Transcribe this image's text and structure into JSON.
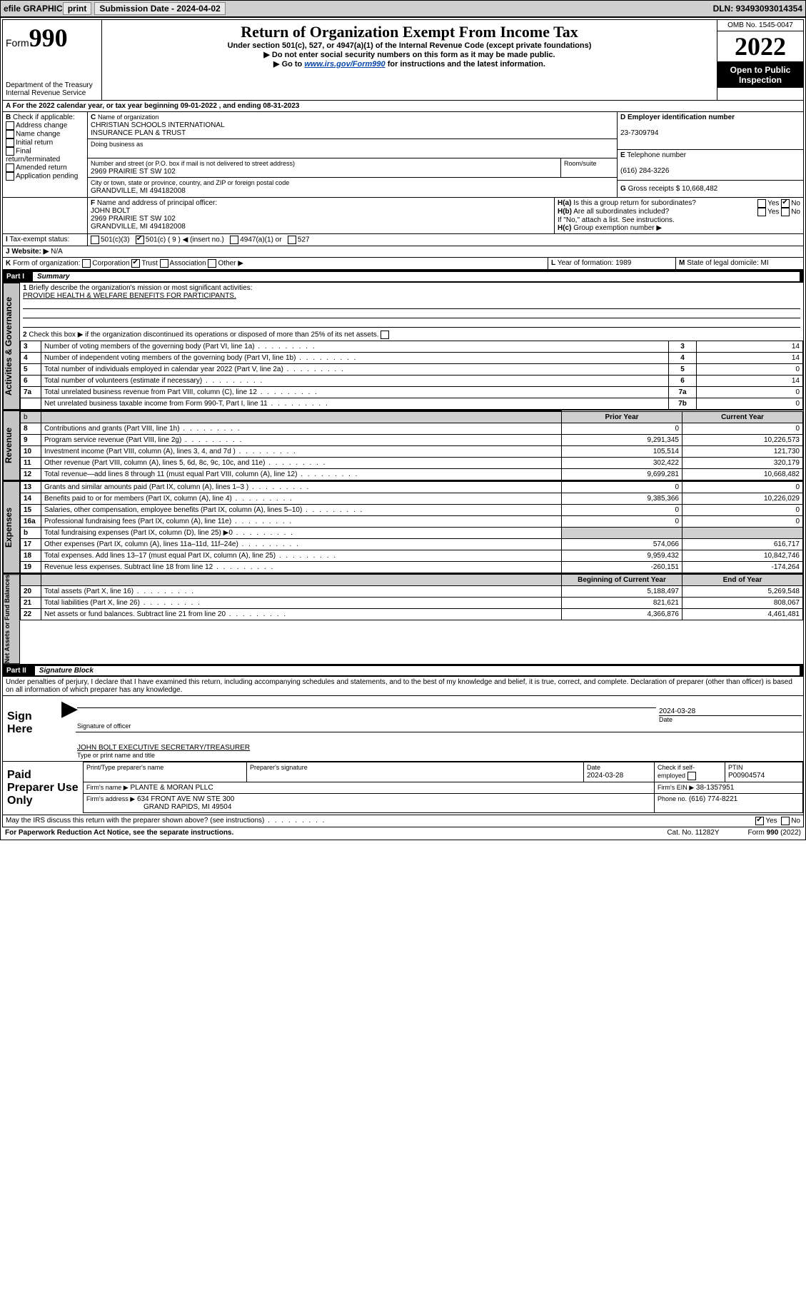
{
  "topbar": {
    "efile": "efile GRAPHIC",
    "print": "print",
    "submission_label": "Submission Date - ",
    "submission_date": "2024-04-02",
    "dln_label": "DLN: ",
    "dln": "93493093014354"
  },
  "header": {
    "form_prefix": "Form",
    "form_num": "990",
    "dept": "Department of the Treasury",
    "irs": "Internal Revenue Service",
    "title": "Return of Organization Exempt From Income Tax",
    "sub1": "Under section 501(c), 527, or 4947(a)(1) of the Internal Revenue Code (except private foundations)",
    "sub2_prefix": "▶ Do not enter social security numbers on this form as it may be made public.",
    "sub3_prefix": "▶ Go to ",
    "sub3_link": "www.irs.gov/Form990",
    "sub3_suffix": " for instructions and the latest information.",
    "omb": "OMB No. 1545-0047",
    "year": "2022",
    "open1": "Open to Public",
    "open2": "Inspection"
  },
  "periodA": {
    "text": "For the 2022 calendar year, or tax year beginning ",
    "begin": "09-01-2022",
    "mid": " , and ending ",
    "end": "08-31-2023"
  },
  "blockB": {
    "label": "Check if applicable:",
    "b1": "Address change",
    "b2": "Name change",
    "b3": "Initial return",
    "b4": "Final return/terminated",
    "b5": "Amended return",
    "b6": "Application pending"
  },
  "blockC": {
    "name_label": "Name of organization",
    "name1": "CHRISTIAN SCHOOLS INTERNATIONAL",
    "name2": "INSURANCE PLAN & TRUST",
    "dba": "Doing business as",
    "addr_label": "Number and street (or P.O. box if mail is not delivered to street address)",
    "room": "Room/suite",
    "addr": "2969 PRAIRIE ST SW 102",
    "city_label": "City or town, state or province, country, and ZIP or foreign postal code",
    "city": "GRANDVILLE, MI  494182008"
  },
  "blockD": {
    "label": "Employer identification number",
    "ein": "23-7309794"
  },
  "blockE": {
    "label": "Telephone number",
    "phone": "(616) 284-3226"
  },
  "blockG": {
    "label": "Gross receipts $",
    "val": "10,668,482"
  },
  "blockF": {
    "label": "Name and address of principal officer:",
    "name": "JOHN BOLT",
    "addr1": "2969 PRAIRIE ST SW 102",
    "addr2": "GRANDVILLE, MI  494182008"
  },
  "blockH": {
    "a": "Is this a group return for subordinates?",
    "b": "Are all subordinates included?",
    "yes": "Yes",
    "no": "No",
    "note": "If \"No,\" attach a list. See instructions.",
    "c": "Group exemption number ▶"
  },
  "blockI": {
    "label": "Tax-exempt status:",
    "c3": "501(c)(3)",
    "c": "501(c) ( 9 ) ◀ (insert no.)",
    "a1": "4947(a)(1) or",
    "s527": "527"
  },
  "blockJ": {
    "label": "Website: ▶",
    "val": "N/A"
  },
  "blockK": {
    "label": "Form of organization:",
    "corp": "Corporation",
    "trust": "Trust",
    "assoc": "Association",
    "other": "Other ▶"
  },
  "blockL": {
    "label": "Year of formation:",
    "val": "1989"
  },
  "blockM": {
    "label": "State of legal domicile:",
    "val": "MI"
  },
  "part1": {
    "title": "Part I",
    "heading": "Summary",
    "line1a": "Briefly describe the organization's mission or most significant activities:",
    "line1b": "PROVIDE HEALTH & WELFARE BENEFITS FOR PARTICIPANTS.",
    "line2": "Check this box ▶  if the organization discontinued its operations or disposed of more than 25% of its net assets.",
    "rows_gov": [
      {
        "n": "3",
        "t": "Number of voting members of the governing body (Part VI, line 1a)",
        "k": "3",
        "v": "14"
      },
      {
        "n": "4",
        "t": "Number of independent voting members of the governing body (Part VI, line 1b)",
        "k": "4",
        "v": "14"
      },
      {
        "n": "5",
        "t": "Total number of individuals employed in calendar year 2022 (Part V, line 2a)",
        "k": "5",
        "v": "0"
      },
      {
        "n": "6",
        "t": "Total number of volunteers (estimate if necessary)",
        "k": "6",
        "v": "14"
      },
      {
        "n": "7a",
        "t": "Total unrelated business revenue from Part VIII, column (C), line 12",
        "k": "7a",
        "v": "0"
      },
      {
        "n": "",
        "t": "Net unrelated business taxable income from Form 990-T, Part I, line 11",
        "k": "7b",
        "v": "0"
      }
    ],
    "col_prior": "Prior Year",
    "col_curr": "Current Year",
    "revenue": [
      {
        "n": "8",
        "t": "Contributions and grants (Part VIII, line 1h)",
        "p": "0",
        "c": "0"
      },
      {
        "n": "9",
        "t": "Program service revenue (Part VIII, line 2g)",
        "p": "9,291,345",
        "c": "10,226,573"
      },
      {
        "n": "10",
        "t": "Investment income (Part VIII, column (A), lines 3, 4, and 7d )",
        "p": "105,514",
        "c": "121,730"
      },
      {
        "n": "11",
        "t": "Other revenue (Part VIII, column (A), lines 5, 6d, 8c, 9c, 10c, and 11e)",
        "p": "302,422",
        "c": "320,179"
      },
      {
        "n": "12",
        "t": "Total revenue—add lines 8 through 11 (must equal Part VIII, column (A), line 12)",
        "p": "9,699,281",
        "c": "10,668,482"
      }
    ],
    "expenses": [
      {
        "n": "13",
        "t": "Grants and similar amounts paid (Part IX, column (A), lines 1–3 )",
        "p": "0",
        "c": "0"
      },
      {
        "n": "14",
        "t": "Benefits paid to or for members (Part IX, column (A), line 4)",
        "p": "9,385,366",
        "c": "10,226,029"
      },
      {
        "n": "15",
        "t": "Salaries, other compensation, employee benefits (Part IX, column (A), lines 5–10)",
        "p": "0",
        "c": "0"
      },
      {
        "n": "16a",
        "t": "Professional fundraising fees (Part IX, column (A), line 11e)",
        "p": "0",
        "c": "0"
      },
      {
        "n": "b",
        "t": "Total fundraising expenses (Part IX, column (D), line 25) ▶0",
        "p": "",
        "c": "",
        "shade": true
      },
      {
        "n": "17",
        "t": "Other expenses (Part IX, column (A), lines 11a–11d, 11f–24e)",
        "p": "574,066",
        "c": "616,717"
      },
      {
        "n": "18",
        "t": "Total expenses. Add lines 13–17 (must equal Part IX, column (A), line 25)",
        "p": "9,959,432",
        "c": "10,842,746"
      },
      {
        "n": "19",
        "t": "Revenue less expenses. Subtract line 18 from line 12",
        "p": "-260,151",
        "c": "-174,264"
      }
    ],
    "col_beg": "Beginning of Current Year",
    "col_end": "End of Year",
    "netassets": [
      {
        "n": "20",
        "t": "Total assets (Part X, line 16)",
        "p": "5,188,497",
        "c": "5,269,548"
      },
      {
        "n": "21",
        "t": "Total liabilities (Part X, line 26)",
        "p": "821,621",
        "c": "808,067"
      },
      {
        "n": "22",
        "t": "Net assets or fund balances. Subtract line 21 from line 20",
        "p": "4,366,876",
        "c": "4,461,481"
      }
    ],
    "side_gov": "Activities & Governance",
    "side_rev": "Revenue",
    "side_exp": "Expenses",
    "side_net": "Net Assets or Fund Balances"
  },
  "part2": {
    "title": "Part II",
    "heading": "Signature Block",
    "decl": "Under penalties of perjury, I declare that I have examined this return, including accompanying schedules and statements, and to the best of my knowledge and belief, it is true, correct, and complete. Declaration of preparer (other than officer) is based on all information of which preparer has any knowledge.",
    "sign_here": "Sign Here",
    "sig_officer": "Signature of officer",
    "sig_date": "Date",
    "sig_date_val": "2024-03-28",
    "officer_line": "JOHN BOLT EXECUTIVE SECRETARY/TREASURER",
    "officer_sub": "Type or print name and title",
    "paid": "Paid Preparer Use Only",
    "prep_name_label": "Print/Type preparer's name",
    "prep_sig_label": "Preparer's signature",
    "prep_date_label": "Date",
    "prep_date": "2024-03-28",
    "check_self": "Check  if self-employed",
    "ptin_label": "PTIN",
    "ptin": "P00904574",
    "firm_name_label": "Firm's name    ▶",
    "firm_name": "PLANTE & MORAN PLLC",
    "firm_ein_label": "Firm's EIN ▶",
    "firm_ein": "38-1357951",
    "firm_addr_label": "Firm's address ▶",
    "firm_addr1": "634 FRONT AVE NW STE 300",
    "firm_addr2": "GRAND RAPIDS, MI  49504",
    "firm_phone_label": "Phone no.",
    "firm_phone": "(616) 774-8221",
    "discuss": "May the IRS discuss this return with the preparer shown above? (see instructions)",
    "footer1": "For Paperwork Reduction Act Notice, see the separate instructions.",
    "footer2": "Cat. No. 11282Y",
    "footer3": "Form 990 (2022)"
  },
  "letters": {
    "A": "A",
    "B": "B",
    "C": "C",
    "D": "D",
    "E": "E",
    "F": "F",
    "G": "G",
    "H_a": "H(a)",
    "H_b": "H(b)",
    "H_c": "H(c)",
    "I": "I",
    "J": "J",
    "K": "K",
    "L": "L",
    "M": "M"
  }
}
